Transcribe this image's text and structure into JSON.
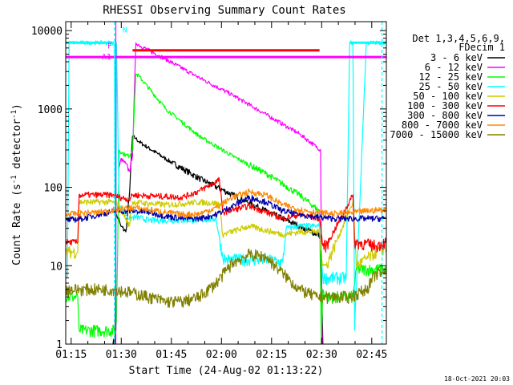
{
  "chart_data": {
    "type": "line",
    "title": "RHESSI Observing Summary Count Rates",
    "xlabel": "Start Time (24-Aug-02 01:13:22)",
    "ylabel_main": "Count Rate (s",
    "ylabel_sup1": "-1",
    "ylabel_mid": " detector",
    "ylabel_sup2": "-1",
    "ylabel_end": ")",
    "footer": "18-Oct-2021 20:03",
    "x_unit": "minutes after 01:13:22 UT",
    "xlim": [
      0,
      96
    ],
    "ylim": [
      1,
      13000
    ],
    "y_scale": "log",
    "x_ticks": [
      {
        "label": "01:15",
        "value": 1.63
      },
      {
        "label": "01:30",
        "value": 16.63
      },
      {
        "label": "01:45",
        "value": 31.63
      },
      {
        "label": "02:00",
        "value": 46.63
      },
      {
        "label": "02:15",
        "value": 61.63
      },
      {
        "label": "02:30",
        "value": 76.63
      },
      {
        "label": "02:45",
        "value": 91.63
      }
    ],
    "y_ticks": [
      {
        "label": "1",
        "value": 1
      },
      {
        "label": "10",
        "value": 10
      },
      {
        "label": "100",
        "value": 100
      },
      {
        "label": "1000",
        "value": 1000
      },
      {
        "label": "10000",
        "value": 10000
      }
    ],
    "legend_position": "top-right, outside plot",
    "legend_header": [
      "Det 1,3,4,5,6,9,",
      "FDecim 1"
    ],
    "series": [
      {
        "name": "3 - 6 keV",
        "color": "#000000",
        "x": [
          14,
          14.8,
          15,
          16,
          16.5,
          18,
          19,
          20,
          21,
          22,
          30,
          40,
          50,
          60,
          70,
          76.3,
          77
        ],
        "y": [
          1,
          1,
          45,
          38,
          32,
          27,
          75,
          450,
          420,
          380,
          230,
          130,
          80,
          50,
          32,
          24,
          1
        ]
      },
      {
        "name": "6 - 12 keV",
        "color": "#ff00ff",
        "x": [
          16,
          16.5,
          18,
          19,
          20,
          21,
          22,
          30,
          40,
          50,
          60,
          70,
          76.3,
          76.8
        ],
        "y": [
          180,
          230,
          200,
          160,
          250,
          7000,
          6500,
          4300,
          2500,
          1500,
          850,
          480,
          300,
          1
        ]
      },
      {
        "name": "12 - 25 keV",
        "color": "#00ff00",
        "x": [
          0,
          1,
          2,
          3.6,
          4,
          15,
          15.2,
          16,
          17,
          19,
          20,
          21,
          22,
          30,
          40,
          50,
          60,
          65,
          70,
          76,
          76.5,
          77,
          78,
          86,
          87,
          96
        ],
        "y": [
          4,
          4,
          4,
          4,
          1.5,
          1.5,
          2,
          300,
          270,
          250,
          300,
          2800,
          2600,
          1000,
          450,
          250,
          150,
          110,
          80,
          50,
          1,
          5,
          4,
          4,
          9,
          9
        ]
      },
      {
        "name": "25 - 50 keV",
        "color": "#00ffff",
        "x": [
          0,
          0.5,
          1,
          14.5,
          15,
          15.2,
          16,
          19,
          21,
          25,
          40,
          45,
          47,
          48,
          50,
          60,
          65,
          66,
          70,
          75,
          76,
          77,
          84,
          85,
          86,
          86.5,
          90,
          95,
          96
        ],
        "y": [
          7,
          7,
          7000,
          7000,
          1.5,
          7000,
          60,
          40,
          42,
          38,
          38,
          40,
          13,
          12,
          12,
          12,
          11,
          30,
          32,
          32,
          32,
          7,
          7,
          7000,
          7000,
          1.5,
          7000,
          7000,
          7000
        ]
      },
      {
        "name": "50 - 100 keV",
        "color": "#cccc00",
        "x": [
          0,
          1,
          3.6,
          4,
          14,
          16,
          19,
          20,
          25,
          30,
          35,
          40,
          46,
          47,
          55,
          65,
          70,
          76,
          77,
          78,
          86,
          87,
          93,
          96
        ],
        "y": [
          15,
          15,
          15,
          65,
          65,
          60,
          32,
          65,
          62,
          60,
          62,
          65,
          62,
          25,
          32,
          25,
          27,
          27,
          10,
          10,
          65,
          10,
          15,
          17
        ]
      },
      {
        "name": "100 - 300 keV",
        "color": "#ff0000",
        "x": [
          0,
          1,
          3.6,
          4,
          14,
          16,
          19,
          20,
          25,
          35,
          40,
          46,
          47,
          55,
          65,
          70,
          76,
          77,
          78,
          86,
          86.5,
          93,
          96
        ],
        "y": [
          20,
          20,
          20,
          80,
          80,
          75,
          70,
          80,
          78,
          75,
          90,
          125,
          48,
          58,
          40,
          45,
          40,
          18,
          18,
          80,
          20,
          18,
          20
        ]
      },
      {
        "name": "300 - 800 keV",
        "color": "#0000aa",
        "x": [
          0,
          5,
          10,
          15,
          20,
          25,
          30,
          35,
          40,
          45,
          50,
          55,
          60,
          65,
          70,
          75,
          80,
          85,
          90,
          95,
          96
        ],
        "y": [
          38,
          40,
          45,
          50,
          50,
          48,
          43,
          40,
          40,
          45,
          58,
          75,
          65,
          50,
          45,
          42,
          40,
          40,
          40,
          40,
          40
        ]
      },
      {
        "name": "800 - 7000 keV",
        "color": "#ff8800",
        "x": [
          0,
          5,
          10,
          15,
          20,
          25,
          30,
          35,
          40,
          45,
          50,
          55,
          60,
          65,
          70,
          75,
          80,
          85,
          90,
          95,
          96
        ],
        "y": [
          45,
          47,
          48,
          52,
          55,
          52,
          48,
          45,
          46,
          55,
          75,
          88,
          80,
          60,
          52,
          48,
          46,
          47,
          50,
          52,
          52
        ]
      },
      {
        "name": "7000 - 15000 keV",
        "color": "#808000",
        "x": [
          0,
          5,
          10,
          15,
          20,
          25,
          30,
          35,
          40,
          45,
          50,
          55,
          60,
          65,
          70,
          75,
          80,
          85,
          90,
          93,
          95,
          96
        ],
        "y": [
          5,
          5,
          5,
          5,
          4.5,
          4,
          3.5,
          3.5,
          4,
          6,
          11,
          14,
          13,
          8,
          5,
          4,
          4,
          4,
          5,
          8,
          8,
          8
        ]
      }
    ],
    "flag_bars": [
      {
        "color": "#ff0000",
        "x0": 20,
        "x1": 76,
        "y": 5600
      },
      {
        "color": "#ff00ff",
        "x0": 0,
        "x1": 96,
        "y": 4600
      },
      {
        "color": "#00ffff",
        "x0": 0,
        "x1": 14,
        "y": 7000
      },
      {
        "color": "#00ffff",
        "x0": 85,
        "x1": 96,
        "y": 7000
      }
    ],
    "flag_labels": [
      {
        "text": "F",
        "color": "#ff00ff",
        "x": 13.2,
        "y": 5900
      },
      {
        "text": "A1",
        "color": "#ff00ff",
        "x": 12.2,
        "y": 4300
      },
      {
        "text": "N",
        "color": "#00ffff",
        "x": 17.7,
        "y": 9500
      }
    ],
    "markers": [
      {
        "color": "#ff00ff",
        "x": 15,
        "style": "solid"
      },
      {
        "color": "#00ffff",
        "x": 14.6,
        "style": "dashed"
      },
      {
        "color": "#00ffff",
        "x": 94.7,
        "style": "dashed"
      }
    ]
  }
}
